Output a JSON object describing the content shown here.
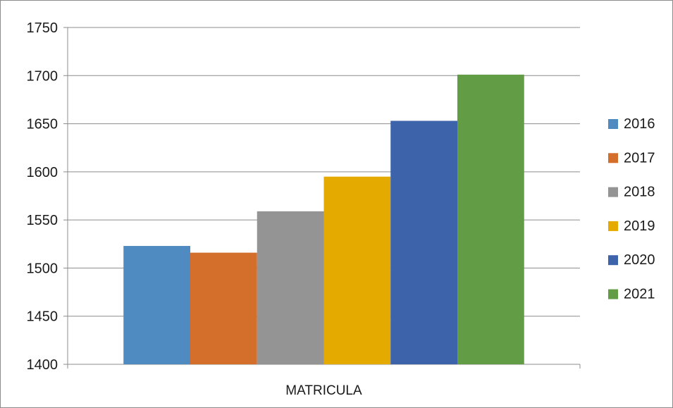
{
  "chart_data": {
    "type": "bar",
    "categories": [
      "MATRICULA"
    ],
    "series": [
      {
        "name": "2016",
        "values": [
          1523
        ],
        "color": "#4f8bc0"
      },
      {
        "name": "2017",
        "values": [
          1516
        ],
        "color": "#d46f2b"
      },
      {
        "name": "2018",
        "values": [
          1559
        ],
        "color": "#949494"
      },
      {
        "name": "2019",
        "values": [
          1595
        ],
        "color": "#e5aa00"
      },
      {
        "name": "2020",
        "values": [
          1653
        ],
        "color": "#3d64aa"
      },
      {
        "name": "2021",
        "values": [
          1701
        ],
        "color": "#629c45"
      }
    ],
    "ylim": [
      1400,
      1750
    ],
    "yticks": [
      1400,
      1450,
      1500,
      1550,
      1600,
      1650,
      1700,
      1750
    ],
    "grid": true,
    "legend_position": "right",
    "title": "",
    "xlabel": "",
    "ylabel": ""
  }
}
